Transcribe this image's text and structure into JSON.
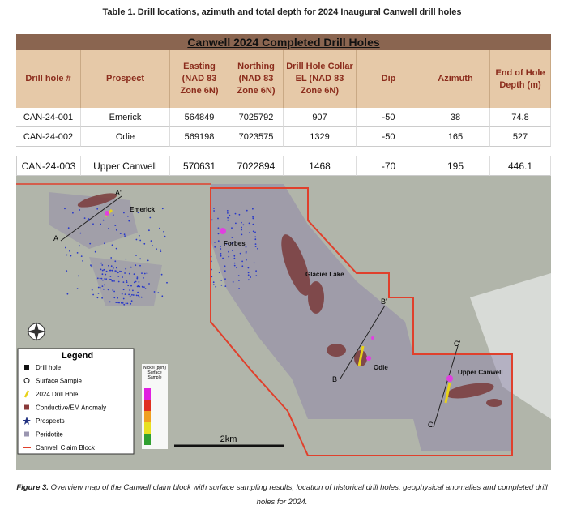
{
  "title": "Table 1. Drill locations, azimuth and total depth for 2024 Inaugural Canwell drill holes",
  "table": {
    "banner": "Canwell 2024 Completed Drill Holes",
    "header": [
      "Drill hole #",
      "Prospect",
      "Easting (NAD 83 Zone 6N)",
      "Northing (NAD 83 Zone 6N)",
      "Drill Hole Collar EL (NAD 83 Zone 6N)",
      "Dip",
      "Azimuth",
      "End of Hole Depth (m)"
    ],
    "rows": [
      [
        "CAN-24-001",
        "Emerick",
        "564849",
        "7025792",
        "907",
        "-50",
        "38",
        "74.8"
      ],
      [
        "CAN-24-002",
        "Odie",
        "569198",
        "7023575",
        "1329",
        "-50",
        "165",
        "527"
      ],
      [
        "CAN-24-003",
        "Upper Canwell",
        "570631",
        "7022894",
        "1468",
        "-70",
        "195",
        "446.1"
      ]
    ]
  },
  "map": {
    "prospects": [
      "Emerick",
      "Forbes",
      "Glacier Lake",
      "Odie",
      "Upper Canwell"
    ],
    "sections": [
      "A",
      "A'",
      "B",
      "B'",
      "C",
      "C'"
    ],
    "legend": {
      "title": "Legend",
      "items": [
        "Drill hole",
        "Surface Sample",
        "2024 Drill Hole",
        "Conductive/EM Anomaly",
        "Prospects",
        "Peridotite",
        "Canwell Claim Block"
      ]
    },
    "nickel_title": "Nickel (ppm) Surface Sample",
    "scale": "2km"
  },
  "caption": {
    "label": "Figure 3.",
    "text": "Overview map of the Canwell claim block with surface sampling results, location of historical drill holes, geophysical anomalies and completed drill holes for 2024."
  }
}
